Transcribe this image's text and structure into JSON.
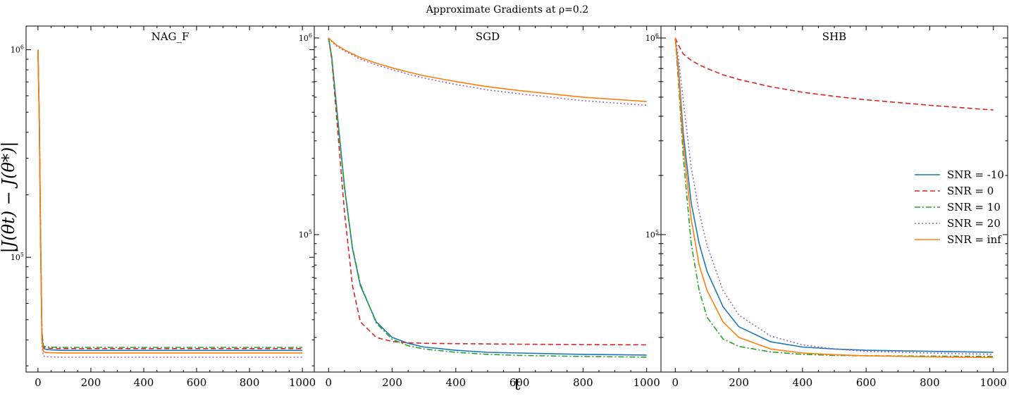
{
  "figure": {
    "title": "Approximate Gradients at ρ=0.2",
    "xlabel": "t",
    "ylabel": "|J(θt) − J(θ*)|"
  },
  "legend": {
    "placement": "center-right of SHB panel",
    "entries": [
      "SNR = -10",
      "SNR = 0",
      "SNR = 10",
      "SNR = 20",
      "SNR = inf"
    ]
  },
  "series_styles": [
    {
      "name": "SNR = -10",
      "color": "#1f77b4",
      "dash": "solid"
    },
    {
      "name": "SNR = 0",
      "color": "#d62728",
      "dash": "dashed"
    },
    {
      "name": "SNR = 10",
      "color": "#2ca02c",
      "dash": "dashdot"
    },
    {
      "name": "SNR = 20",
      "color": "#9467bd",
      "dash": "dotted"
    },
    {
      "name": "SNR = inf",
      "color": "#ff7f0e",
      "dash": "solid"
    }
  ],
  "chart_data": [
    {
      "type": "line",
      "title": "NAG_F",
      "yscale": "log",
      "xlim": [
        -45,
        1045
      ],
      "ylim": [
        28000,
        1300000
      ],
      "xticks": [
        0,
        200,
        400,
        600,
        800,
        1000
      ],
      "yticks": [
        100000,
        1000000
      ],
      "ytick_labels": [
        "10^5",
        "10^6"
      ],
      "x": [
        0,
        5,
        10,
        15,
        20,
        30,
        50,
        100,
        200,
        400,
        600,
        800,
        1000
      ],
      "series": [
        {
          "name": "SNR = -10",
          "values": [
            1000000,
            450000,
            120000,
            42000,
            36500,
            36000,
            35800,
            35600,
            35600,
            35600,
            35600,
            35600,
            35600
          ]
        },
        {
          "name": "SNR = 0",
          "values": [
            1000000,
            460000,
            125000,
            43000,
            37000,
            36600,
            36400,
            36300,
            36300,
            36300,
            36300,
            36300,
            36300
          ]
        },
        {
          "name": "SNR = 10",
          "values": [
            1000000,
            470000,
            130000,
            44000,
            37500,
            37000,
            36900,
            36800,
            36800,
            36800,
            36800,
            36800,
            36800
          ]
        },
        {
          "name": "SNR = 20",
          "values": [
            1000000,
            430000,
            110000,
            38000,
            33500,
            33200,
            33100,
            33000,
            33000,
            33000,
            33000,
            33000,
            33000
          ]
        },
        {
          "name": "SNR = inf",
          "values": [
            1000000,
            440000,
            115000,
            40000,
            35200,
            34800,
            34700,
            34600,
            34600,
            34600,
            34600,
            34600,
            34600
          ]
        }
      ]
    },
    {
      "type": "line",
      "title": "SGD",
      "yscale": "log",
      "xlim": [
        -45,
        1045
      ],
      "ylim": [
        20000,
        1150000
      ],
      "xticks": [
        0,
        200,
        400,
        600,
        800,
        1000
      ],
      "yticks": [
        100000,
        1000000
      ],
      "ytick_labels": [
        "10^5",
        "10^6"
      ],
      "x": [
        0,
        10,
        25,
        50,
        75,
        100,
        150,
        200,
        250,
        300,
        400,
        500,
        600,
        800,
        1000
      ],
      "series": [
        {
          "name": "SNR = -10",
          "values": [
            1000000,
            800000,
            450000,
            175000,
            85000,
            55000,
            36000,
            30000,
            28000,
            26800,
            25800,
            25200,
            25000,
            24600,
            24400
          ]
        },
        {
          "name": "SNR = 0",
          "values": [
            1000000,
            780000,
            400000,
            130000,
            55000,
            36000,
            30000,
            28600,
            28200,
            28000,
            27900,
            27800,
            27700,
            27600,
            27500
          ]
        },
        {
          "name": "SNR = 10",
          "values": [
            1000000,
            790000,
            440000,
            172000,
            86000,
            56000,
            35500,
            29300,
            27200,
            26200,
            25200,
            24600,
            24300,
            24000,
            23800
          ]
        },
        {
          "name": "SNR = 20",
          "values": [
            1000000,
            960000,
            910000,
            860000,
            820000,
            780000,
            730000,
            690000,
            655000,
            625000,
            580000,
            545000,
            520000,
            480000,
            455000
          ]
        },
        {
          "name": "SNR = inf",
          "values": [
            1000000,
            965000,
            920000,
            870000,
            830000,
            795000,
            745000,
            705000,
            672000,
            643000,
            600000,
            565000,
            540000,
            500000,
            475000
          ]
        }
      ]
    },
    {
      "type": "line",
      "title": "SHB",
      "yscale": "log",
      "xlim": [
        -45,
        1045
      ],
      "ylim": [
        20000,
        1150000
      ],
      "xticks": [
        0,
        200,
        400,
        600,
        800,
        1000
      ],
      "yticks": [
        100000,
        1000000
      ],
      "ytick_labels": [
        "10^5",
        "10^6"
      ],
      "x": [
        0,
        10,
        25,
        50,
        75,
        100,
        150,
        200,
        300,
        400,
        500,
        600,
        800,
        1000
      ],
      "series": [
        {
          "name": "SNR = -10",
          "values": [
            1000000,
            700000,
            330000,
            145000,
            90000,
            65000,
            43000,
            34000,
            28500,
            26800,
            26200,
            25800,
            25500,
            25200
          ]
        },
        {
          "name": "SNR = 0",
          "values": [
            1000000,
            920000,
            830000,
            770000,
            730000,
            700000,
            650000,
            615000,
            565000,
            530000,
            505000,
            485000,
            455000,
            430000
          ]
        },
        {
          "name": "SNR = 10",
          "values": [
            1000000,
            600000,
            250000,
            90000,
            52000,
            38000,
            29500,
            27000,
            25300,
            24600,
            24300,
            24200,
            24100,
            24000
          ]
        },
        {
          "name": "SNR = 20",
          "values": [
            1000000,
            800000,
            480000,
            220000,
            130000,
            88000,
            52000,
            39000,
            30500,
            27500,
            26200,
            25500,
            25000,
            24600
          ]
        },
        {
          "name": "SNR = inf",
          "values": [
            1000000,
            660000,
            290000,
            120000,
            70000,
            52000,
            36000,
            30000,
            26200,
            25000,
            24500,
            24200,
            23900,
            23700
          ]
        }
      ]
    }
  ]
}
